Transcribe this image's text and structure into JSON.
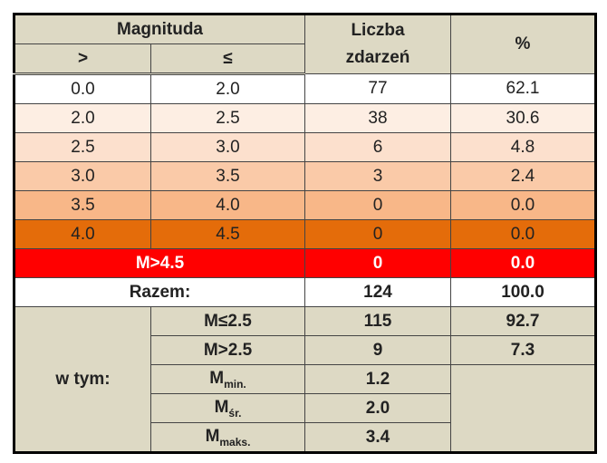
{
  "header": {
    "magnitude": "Magnituda",
    "gt": ">",
    "le": "≤",
    "count": "Liczba zdarzeń",
    "percent": "%"
  },
  "rows": [
    [
      "0.0",
      "2.0",
      "77",
      "62.1"
    ],
    [
      "2.0",
      "2.5",
      "38",
      "30.6"
    ],
    [
      "2.5",
      "3.0",
      "6",
      "4.8"
    ],
    [
      "3.0",
      "3.5",
      "3",
      "2.4"
    ],
    [
      "3.5",
      "4.0",
      "0",
      "0.0"
    ],
    [
      "4.0",
      "4.5",
      "0",
      "0.0"
    ]
  ],
  "above": {
    "label": "M>4.5",
    "count": "0",
    "percent": "0.0"
  },
  "total": {
    "label": "Razem:",
    "count": "124",
    "percent": "100.0"
  },
  "breakdown": {
    "label": "w tym:",
    "items": [
      {
        "label": "M≤2.5",
        "count": "115",
        "percent": "92.7"
      },
      {
        "label": "M>2.5",
        "count": "9",
        "percent": "7.3"
      },
      {
        "label": "M",
        "sub": "min.",
        "count": "1.2"
      },
      {
        "label": "M",
        "sub": "śr.",
        "count": "2.0"
      },
      {
        "label": "M",
        "sub": "maks.",
        "count": "3.4"
      }
    ]
  }
}
